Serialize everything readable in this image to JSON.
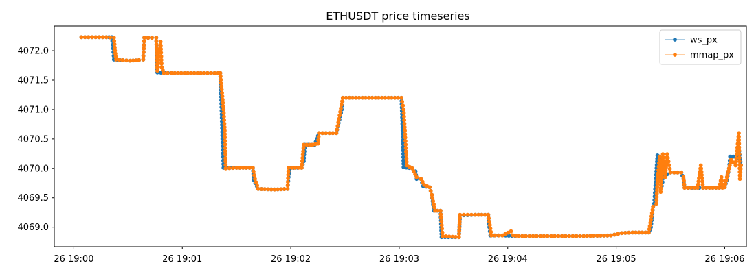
{
  "chart_data": {
    "type": "line",
    "title": "ETHUSDT price timeseries",
    "xlabel": "",
    "ylabel": "",
    "x_tick_labels": [
      "26 19:00",
      "26 19:01",
      "26 19:02",
      "26 19:03",
      "26 19:04",
      "26 19:05",
      "26 19:06"
    ],
    "x_tick_minutes": [
      0,
      1,
      2,
      3,
      4,
      5,
      6
    ],
    "xlim_minutes": [
      -0.18,
      6.2
    ],
    "y_tick_labels": [
      "4069.0",
      "4069.5",
      "4070.0",
      "4070.5",
      "4071.0",
      "4071.5",
      "4072.0"
    ],
    "y_tick_values": [
      4069.0,
      4069.5,
      4070.0,
      4070.5,
      4071.0,
      4071.5,
      4072.0
    ],
    "ylim": [
      4068.67,
      4072.42
    ],
    "grid": false,
    "legend_position": "top-right",
    "x_unit": "minutes after 26 19:00",
    "series": [
      {
        "name": "ws_px",
        "color": "#1f77b4",
        "points": [
          [
            0.07,
            4072.23
          ],
          [
            0.3,
            4072.23
          ],
          [
            0.35,
            4072.23
          ],
          [
            0.36,
            4072.1
          ],
          [
            0.37,
            4071.85
          ],
          [
            0.45,
            4071.84
          ],
          [
            0.52,
            4071.83
          ],
          [
            0.6,
            4071.84
          ],
          [
            0.64,
            4071.85
          ],
          [
            0.65,
            4072.22
          ],
          [
            0.72,
            4072.22
          ],
          [
            0.76,
            4072.22
          ],
          [
            0.77,
            4071.63
          ],
          [
            0.9,
            4071.62
          ],
          [
            1.05,
            4071.62
          ],
          [
            1.2,
            4071.62
          ],
          [
            1.33,
            4071.62
          ],
          [
            1.35,
            4071.62
          ],
          [
            1.36,
            4071.1
          ],
          [
            1.37,
            4070.5
          ],
          [
            1.38,
            4070.01
          ],
          [
            1.5,
            4070.01
          ],
          [
            1.65,
            4070.01
          ],
          [
            1.66,
            4069.8
          ],
          [
            1.7,
            4069.65
          ],
          [
            1.85,
            4069.64
          ],
          [
            1.97,
            4069.65
          ],
          [
            1.98,
            4069.85
          ],
          [
            1.99,
            4070.01
          ],
          [
            2.1,
            4070.01
          ],
          [
            2.12,
            4070.12
          ],
          [
            2.13,
            4070.4
          ],
          [
            2.22,
            4070.4
          ],
          [
            2.24,
            4070.5
          ],
          [
            2.26,
            4070.6
          ],
          [
            2.42,
            4070.6
          ],
          [
            2.47,
            4071.0
          ],
          [
            2.48,
            4071.2
          ],
          [
            2.75,
            4071.2
          ],
          [
            3.02,
            4071.2
          ],
          [
            3.03,
            4070.7
          ],
          [
            3.04,
            4070.02
          ],
          [
            3.12,
            4070.0
          ],
          [
            3.15,
            4069.95
          ],
          [
            3.16,
            4069.82
          ],
          [
            3.2,
            4069.82
          ],
          [
            3.22,
            4069.7
          ],
          [
            3.28,
            4069.68
          ],
          [
            3.3,
            4069.55
          ],
          [
            3.32,
            4069.28
          ],
          [
            3.38,
            4069.28
          ],
          [
            3.39,
            4068.83
          ],
          [
            3.55,
            4068.83
          ],
          [
            3.56,
            4069.2
          ],
          [
            3.7,
            4069.21
          ],
          [
            3.82,
            4069.21
          ],
          [
            3.83,
            4069.0
          ],
          [
            3.84,
            4068.86
          ],
          [
            3.95,
            4068.86
          ],
          [
            4.1,
            4068.85
          ],
          [
            4.4,
            4068.85
          ],
          [
            4.7,
            4068.85
          ],
          [
            4.95,
            4068.86
          ],
          [
            5.05,
            4068.9
          ],
          [
            5.15,
            4068.91
          ],
          [
            5.3,
            4068.91
          ],
          [
            5.32,
            4069.0
          ],
          [
            5.34,
            4069.35
          ],
          [
            5.35,
            4069.4
          ],
          [
            5.37,
            4069.95
          ],
          [
            5.38,
            4070.22
          ],
          [
            5.4,
            4070.2
          ],
          [
            5.42,
            4069.7
          ],
          [
            5.44,
            4069.9
          ],
          [
            5.47,
            4069.9
          ],
          [
            5.5,
            4069.93
          ],
          [
            5.6,
            4069.93
          ],
          [
            5.62,
            4069.82
          ],
          [
            5.63,
            4069.67
          ],
          [
            5.8,
            4069.67
          ],
          [
            5.95,
            4069.67
          ],
          [
            6.0,
            4069.68
          ],
          [
            6.02,
            4069.8
          ],
          [
            6.04,
            4070.0
          ],
          [
            6.05,
            4070.2
          ],
          [
            6.08,
            4070.2
          ],
          [
            6.12,
            4070.18
          ],
          [
            6.13,
            4070.35
          ],
          [
            6.15,
            4070.05
          ]
        ]
      },
      {
        "name": "mmap_px",
        "color": "#ff7f0e",
        "points": [
          [
            0.07,
            4072.23
          ],
          [
            0.3,
            4072.23
          ],
          [
            0.37,
            4072.22
          ],
          [
            0.38,
            4072.0
          ],
          [
            0.39,
            4071.85
          ],
          [
            0.45,
            4071.84
          ],
          [
            0.52,
            4071.83
          ],
          [
            0.6,
            4071.84
          ],
          [
            0.64,
            4071.85
          ],
          [
            0.65,
            4072.22
          ],
          [
            0.72,
            4072.22
          ],
          [
            0.76,
            4072.22
          ],
          [
            0.77,
            4071.66
          ],
          [
            0.8,
            4072.15
          ],
          [
            0.81,
            4071.72
          ],
          [
            0.83,
            4071.62
          ],
          [
            0.9,
            4071.62
          ],
          [
            1.05,
            4071.62
          ],
          [
            1.2,
            4071.62
          ],
          [
            1.33,
            4071.62
          ],
          [
            1.35,
            4071.62
          ],
          [
            1.38,
            4071.0
          ],
          [
            1.39,
            4070.7
          ],
          [
            1.4,
            4070.0
          ],
          [
            1.5,
            4070.01
          ],
          [
            1.65,
            4070.01
          ],
          [
            1.67,
            4069.82
          ],
          [
            1.7,
            4069.65
          ],
          [
            1.85,
            4069.64
          ],
          [
            1.97,
            4069.65
          ],
          [
            1.98,
            4070.01
          ],
          [
            2.1,
            4070.01
          ],
          [
            2.12,
            4070.4
          ],
          [
            2.2,
            4070.4
          ],
          [
            2.25,
            4070.42
          ],
          [
            2.26,
            4070.6
          ],
          [
            2.42,
            4070.6
          ],
          [
            2.48,
            4071.2
          ],
          [
            2.75,
            4071.2
          ],
          [
            3.02,
            4071.2
          ],
          [
            3.04,
            4071.0
          ],
          [
            3.05,
            4070.7
          ],
          [
            3.07,
            4070.05
          ],
          [
            3.12,
            4070.0
          ],
          [
            3.16,
            4069.85
          ],
          [
            3.2,
            4069.82
          ],
          [
            3.23,
            4069.72
          ],
          [
            3.28,
            4069.68
          ],
          [
            3.3,
            4069.55
          ],
          [
            3.33,
            4069.28
          ],
          [
            3.38,
            4069.28
          ],
          [
            3.4,
            4068.85
          ],
          [
            3.55,
            4068.83
          ],
          [
            3.56,
            4069.21
          ],
          [
            3.7,
            4069.21
          ],
          [
            3.82,
            4069.21
          ],
          [
            3.85,
            4068.86
          ],
          [
            3.95,
            4068.86
          ],
          [
            4.03,
            4068.93
          ],
          [
            4.05,
            4068.86
          ],
          [
            4.1,
            4068.85
          ],
          [
            4.4,
            4068.85
          ],
          [
            4.7,
            4068.85
          ],
          [
            4.95,
            4068.86
          ],
          [
            5.05,
            4068.9
          ],
          [
            5.15,
            4068.91
          ],
          [
            5.3,
            4068.91
          ],
          [
            5.34,
            4069.35
          ],
          [
            5.37,
            4069.4
          ],
          [
            5.38,
            4069.8
          ],
          [
            5.4,
            4070.2
          ],
          [
            5.41,
            4069.6
          ],
          [
            5.43,
            4070.24
          ],
          [
            5.45,
            4069.85
          ],
          [
            5.47,
            4070.24
          ],
          [
            5.5,
            4069.93
          ],
          [
            5.6,
            4069.93
          ],
          [
            5.62,
            4069.85
          ],
          [
            5.63,
            4069.67
          ],
          [
            5.75,
            4069.67
          ],
          [
            5.78,
            4070.05
          ],
          [
            5.8,
            4069.67
          ],
          [
            5.95,
            4069.67
          ],
          [
            5.97,
            4069.85
          ],
          [
            5.98,
            4069.67
          ],
          [
            6.0,
            4069.68
          ],
          [
            6.02,
            4069.85
          ],
          [
            6.04,
            4070.0
          ],
          [
            6.06,
            4070.15
          ],
          [
            6.1,
            4070.05
          ],
          [
            6.13,
            4070.6
          ],
          [
            6.14,
            4069.82
          ],
          [
            6.15,
            4070.05
          ]
        ]
      }
    ]
  }
}
